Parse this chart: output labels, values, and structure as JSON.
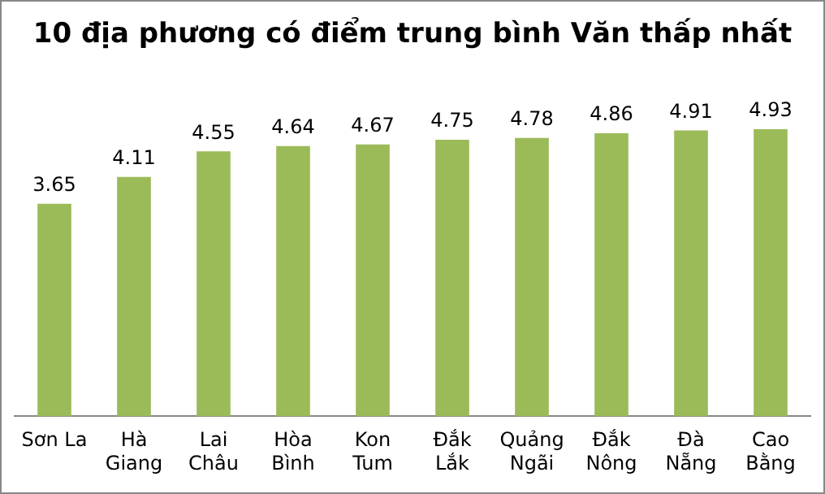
{
  "chart_data": {
    "type": "bar",
    "title": "10 địa phương có điểm trung bình Văn thấp nhất",
    "categories": [
      "Sơn La",
      "Hà Giang",
      "Lai Châu",
      "Hòa Bình",
      "Kon Tum",
      "Đắk Lắk",
      "Quảng Ngãi",
      "Đắk Nông",
      "Đà Nẵng",
      "Cao Bằng"
    ],
    "values": [
      3.65,
      4.11,
      4.55,
      4.64,
      4.67,
      4.75,
      4.78,
      4.86,
      4.91,
      4.93
    ],
    "color": "#9bbb59",
    "tick_labels": "x",
    "data_labels": true,
    "grid": false,
    "legend": false
  }
}
